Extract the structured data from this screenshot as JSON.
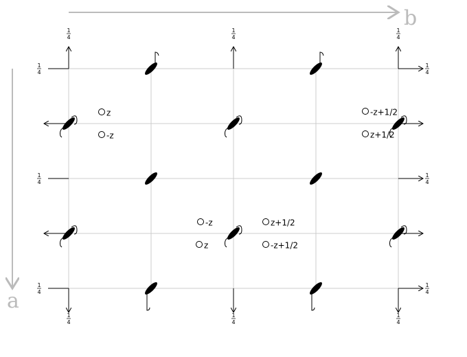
{
  "axes": {
    "a": "a",
    "b": "b"
  },
  "quarter_labels": [
    {
      "numerator": "1",
      "denominator": "4"
    },
    {
      "numerator": "1",
      "denominator": "4"
    },
    {
      "numerator": "1",
      "denominator": "4"
    },
    {
      "numerator": "1",
      "denominator": "4"
    },
    {
      "numerator": "1",
      "denominator": "4"
    },
    {
      "numerator": "1",
      "denominator": "4"
    },
    {
      "numerator": "1",
      "denominator": "4"
    },
    {
      "numerator": "1",
      "denominator": "4"
    },
    {
      "numerator": "1",
      "denominator": "4"
    },
    {
      "numerator": "1",
      "denominator": "4"
    },
    {
      "numerator": "1",
      "denominator": "4"
    },
    {
      "numerator": "1",
      "denominator": "4"
    }
  ],
  "atoms": [
    {
      "label": "z"
    },
    {
      "label": "-z"
    },
    {
      "label": "-z+1/2"
    },
    {
      "label": "z+1/2"
    },
    {
      "label": "-z"
    },
    {
      "label": "z"
    },
    {
      "label": "z+1/2"
    },
    {
      "label": "-z+1/2"
    }
  ]
}
